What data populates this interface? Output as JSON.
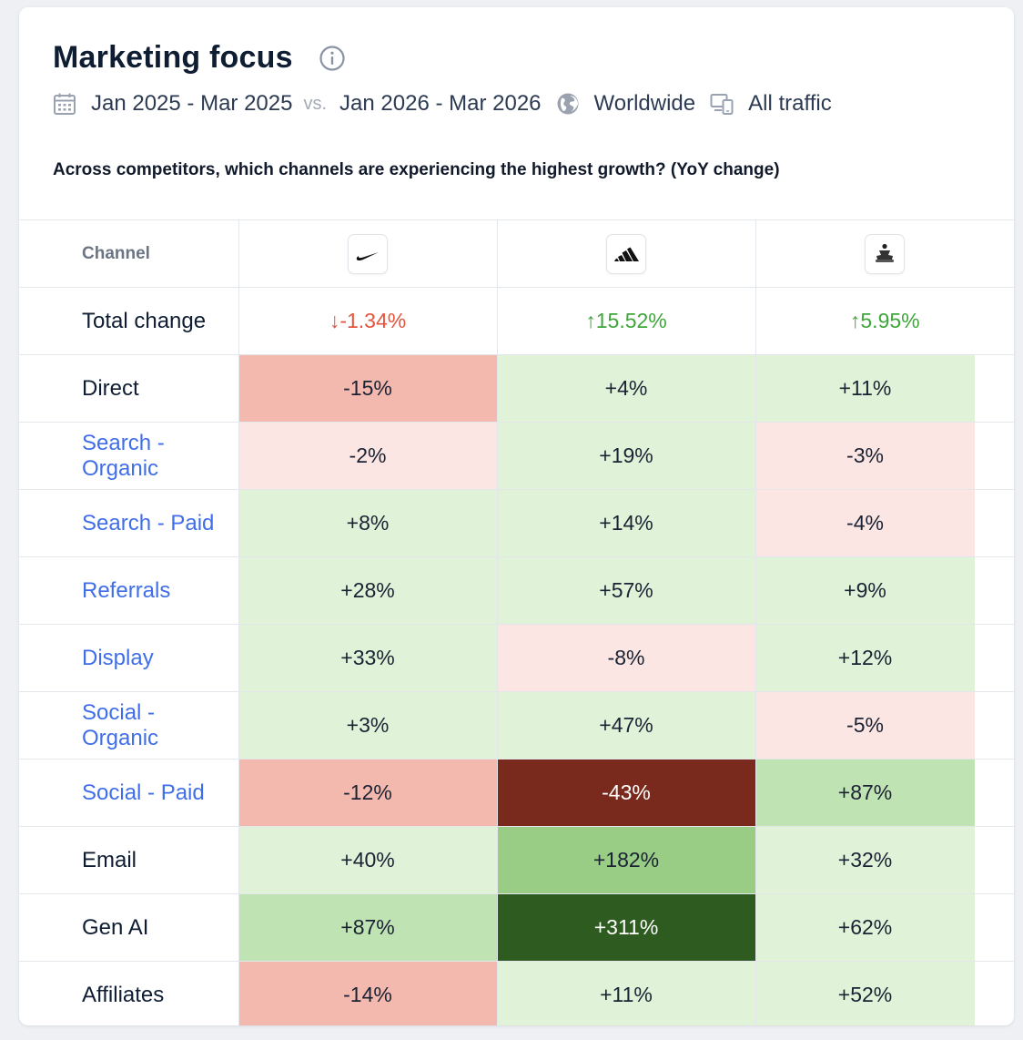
{
  "header": {
    "title": "Marketing focus",
    "date_range_a": "Jan 2025 - Mar 2025",
    "vs_label": "vs.",
    "date_range_b": "Jan 2026 - Mar 2026",
    "region": "Worldwide",
    "traffic": "All traffic"
  },
  "question": "Across competitors, which channels are experiencing the highest growth? (YoY change)",
  "table": {
    "channel_header": "Channel",
    "competitors": [
      {
        "logo": "nike-swoosh-logo"
      },
      {
        "logo": "adidas-logo"
      },
      {
        "logo": "brand-figure-logo"
      }
    ],
    "total": {
      "label": "Total change",
      "values": [
        {
          "text": "↓-1.34%",
          "direction": "down"
        },
        {
          "text": "↑15.52%",
          "direction": "up"
        },
        {
          "text": "↑5.95%",
          "direction": "up"
        }
      ]
    },
    "rows": [
      {
        "channel": "Direct",
        "link": false,
        "values": [
          "-15%",
          "+4%",
          "+11%"
        ]
      },
      {
        "channel": "Search - Organic",
        "link": true,
        "values": [
          "-2%",
          "+19%",
          "-3%"
        ]
      },
      {
        "channel": "Search - Paid",
        "link": true,
        "values": [
          "+8%",
          "+14%",
          "-4%"
        ]
      },
      {
        "channel": "Referrals",
        "link": true,
        "values": [
          "+28%",
          "+57%",
          "+9%"
        ]
      },
      {
        "channel": "Display",
        "link": true,
        "values": [
          "+33%",
          "-8%",
          "+12%"
        ]
      },
      {
        "channel": "Social - Organic",
        "link": true,
        "values": [
          "+3%",
          "+47%",
          "-5%"
        ]
      },
      {
        "channel": "Social - Paid",
        "link": true,
        "values": [
          "-12%",
          "-43%",
          "+87%"
        ]
      },
      {
        "channel": "Email",
        "link": false,
        "values": [
          "+40%",
          "+182%",
          "+32%"
        ]
      },
      {
        "channel": "Gen AI",
        "link": false,
        "values": [
          "+87%",
          "+311%",
          "+62%"
        ]
      },
      {
        "channel": "Affiliates",
        "link": false,
        "values": [
          "-14%",
          "+11%",
          "+52%"
        ]
      }
    ]
  },
  "colors": {
    "strong_negative": "#f4b9ae",
    "light_negative": "#fbe6e3",
    "light_positive": "#e0f3d9",
    "medium_positive": "#bfe3b2",
    "strong_positive": "#99cc85",
    "darkest_positive": "#2e5c20",
    "darkest_negative": "#7a2a1c",
    "up": "#3fa63a",
    "down": "#e5543d",
    "link": "#3f6ee8"
  }
}
